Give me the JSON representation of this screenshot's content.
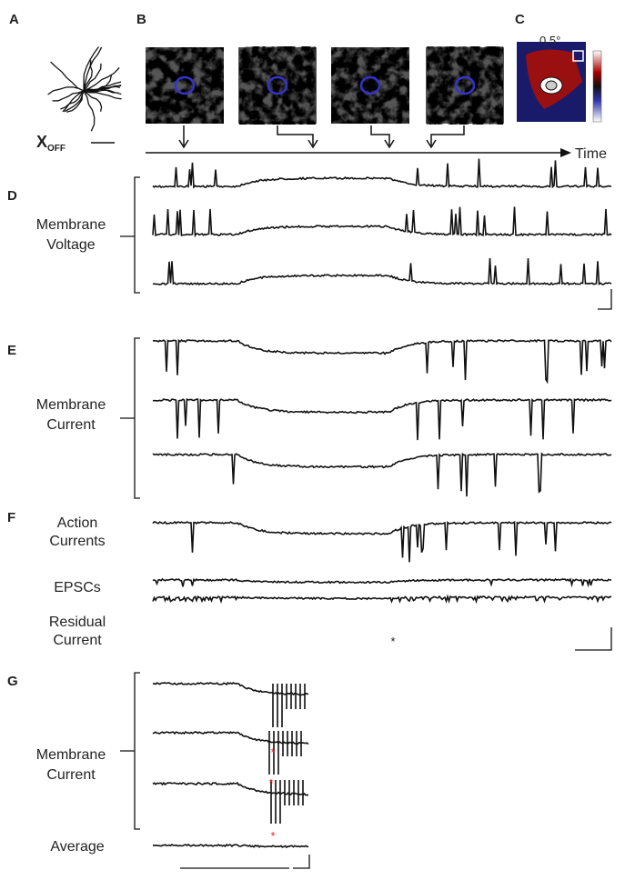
{
  "panels": {
    "A": {
      "label": "A",
      "cell": "X",
      "cell_sub": "OFF"
    },
    "B": {
      "label": "B",
      "axis": "Time"
    },
    "C": {
      "label": "C",
      "scale": "0.5°"
    },
    "D": {
      "label": "D",
      "ylabel": [
        "Membrane",
        "Voltage"
      ]
    },
    "E": {
      "label": "E",
      "ylabel": [
        "Membrane",
        "Current"
      ]
    },
    "F": {
      "label": "F",
      "traces": [
        [
          "Action",
          "Currents"
        ],
        [
          "EPSCs"
        ],
        [
          "Residual",
          "Current"
        ]
      ],
      "marker": "*"
    },
    "G": {
      "label": "G",
      "ylabel": [
        "Membrane",
        "Current"
      ],
      "average": "Average",
      "markers": [
        "*",
        "*",
        "*"
      ]
    }
  }
}
